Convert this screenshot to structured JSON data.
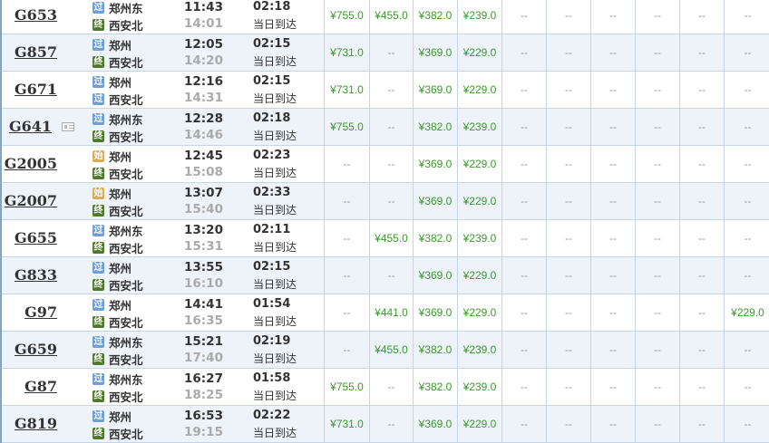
{
  "colors": {
    "price": "#3a9a2a",
    "pass_icon": "#6f9fd6",
    "end_icon": "#4f7a2c",
    "start_icon": "#d9ab5b"
  },
  "icon_labels": {
    "pass": "过",
    "end": "终",
    "start": "始"
  },
  "arrival_note": "当日到达",
  "trains": [
    {
      "no": "G653",
      "from": "郑州东",
      "from_icon": "pass",
      "to": "西安北",
      "to_icon": "end",
      "dep": "11:43",
      "arr": "14:01",
      "dur": "02:18",
      "prices": [
        "¥755.0",
        "¥455.0",
        "¥382.0",
        "¥239.0",
        "--",
        "--",
        "--",
        "--",
        "--",
        "--"
      ]
    },
    {
      "no": "G857",
      "from": "郑州",
      "from_icon": "pass",
      "to": "西安北",
      "to_icon": "end",
      "dep": "12:05",
      "arr": "14:20",
      "dur": "02:15",
      "prices": [
        "¥731.0",
        "--",
        "¥369.0",
        "¥229.0",
        "--",
        "--",
        "--",
        "--",
        "--",
        "--"
      ]
    },
    {
      "no": "G671",
      "from": "郑州",
      "from_icon": "pass",
      "to": "西安北",
      "to_icon": "pass",
      "dep": "12:16",
      "arr": "14:31",
      "dur": "02:15",
      "prices": [
        "¥731.0",
        "--",
        "¥369.0",
        "¥229.0",
        "--",
        "--",
        "--",
        "--",
        "--",
        "--"
      ]
    },
    {
      "no": "G641",
      "card": true,
      "from": "郑州东",
      "from_icon": "pass",
      "to": "西安北",
      "to_icon": "end",
      "dep": "12:28",
      "arr": "14:46",
      "dur": "02:18",
      "prices": [
        "¥755.0",
        "--",
        "¥382.0",
        "¥239.0",
        "--",
        "--",
        "--",
        "--",
        "--",
        "--"
      ]
    },
    {
      "no": "G2005",
      "from": "郑州",
      "from_icon": "start",
      "to": "西安北",
      "to_icon": "end",
      "dep": "12:45",
      "arr": "15:08",
      "dur": "02:23",
      "prices": [
        "--",
        "--",
        "¥369.0",
        "¥229.0",
        "--",
        "--",
        "--",
        "--",
        "--",
        "--"
      ]
    },
    {
      "no": "G2007",
      "from": "郑州",
      "from_icon": "start",
      "to": "西安北",
      "to_icon": "end",
      "dep": "13:07",
      "arr": "15:40",
      "dur": "02:33",
      "prices": [
        "--",
        "--",
        "¥369.0",
        "¥229.0",
        "--",
        "--",
        "--",
        "--",
        "--",
        "--"
      ]
    },
    {
      "no": "G655",
      "from": "郑州东",
      "from_icon": "pass",
      "to": "西安北",
      "to_icon": "end",
      "dep": "13:20",
      "arr": "15:31",
      "dur": "02:11",
      "prices": [
        "--",
        "¥455.0",
        "¥382.0",
        "¥239.0",
        "--",
        "--",
        "--",
        "--",
        "--",
        "--"
      ]
    },
    {
      "no": "G833",
      "from": "郑州",
      "from_icon": "pass",
      "to": "西安北",
      "to_icon": "end",
      "dep": "13:55",
      "arr": "16:10",
      "dur": "02:15",
      "prices": [
        "--",
        "--",
        "¥369.0",
        "¥229.0",
        "--",
        "--",
        "--",
        "--",
        "--",
        "--"
      ]
    },
    {
      "no": "G97",
      "from": "郑州",
      "from_icon": "pass",
      "to": "西安北",
      "to_icon": "end",
      "dep": "14:41",
      "arr": "16:35",
      "dur": "01:54",
      "prices": [
        "--",
        "¥441.0",
        "¥369.0",
        "¥229.0",
        "--",
        "--",
        "--",
        "--",
        "--",
        "¥229.0"
      ]
    },
    {
      "no": "G659",
      "from": "郑州东",
      "from_icon": "pass",
      "to": "西安北",
      "to_icon": "end",
      "dep": "15:21",
      "arr": "17:40",
      "dur": "02:19",
      "prices": [
        "--",
        "¥455.0",
        "¥382.0",
        "¥239.0",
        "--",
        "--",
        "--",
        "--",
        "--",
        "--"
      ]
    },
    {
      "no": "G87",
      "from": "郑州东",
      "from_icon": "pass",
      "to": "西安北",
      "to_icon": "end",
      "dep": "16:27",
      "arr": "18:25",
      "dur": "01:58",
      "prices": [
        "¥755.0",
        "--",
        "¥382.0",
        "¥239.0",
        "--",
        "--",
        "--",
        "--",
        "--",
        "--"
      ]
    },
    {
      "no": "G819",
      "from": "郑州",
      "from_icon": "pass",
      "to": "西安北",
      "to_icon": "end",
      "dep": "16:53",
      "arr": "19:15",
      "dur": "02:22",
      "prices": [
        "¥731.0",
        "--",
        "¥369.0",
        "¥229.0",
        "--",
        "--",
        "--",
        "--",
        "--",
        "--"
      ]
    }
  ]
}
